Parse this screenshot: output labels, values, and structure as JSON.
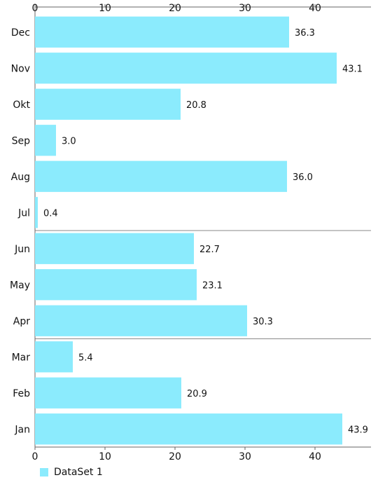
{
  "chart_data": {
    "type": "bar",
    "orientation": "horizontal",
    "categories": [
      "Jan",
      "Feb",
      "Mar",
      "Apr",
      "May",
      "Jun",
      "Jul",
      "Aug",
      "Sep",
      "Okt",
      "Nov",
      "Dec"
    ],
    "series": [
      {
        "name": "DataSet 1",
        "values": [
          43.9,
          20.9,
          5.4,
          30.3,
          23.1,
          22.7,
          0.4,
          36.0,
          3.0,
          20.8,
          43.1,
          36.3
        ],
        "value_labels": [
          "43.9",
          "20.9",
          "5.4",
          "30.3",
          "23.1",
          "22.7",
          "0.4",
          "36.0",
          "3.0",
          "20.8",
          "43.1",
          "36.3"
        ]
      }
    ],
    "x_ticks": [
      "0",
      "10",
      "20",
      "30",
      "40"
    ],
    "xlim": [
      0,
      48
    ],
    "grid": "horizontal lines at Mar/Apr and Jun/Jul boundaries",
    "legend_placement": "bottom-left",
    "bar_color": "#8BEBFD",
    "axis_color": "#666666"
  }
}
